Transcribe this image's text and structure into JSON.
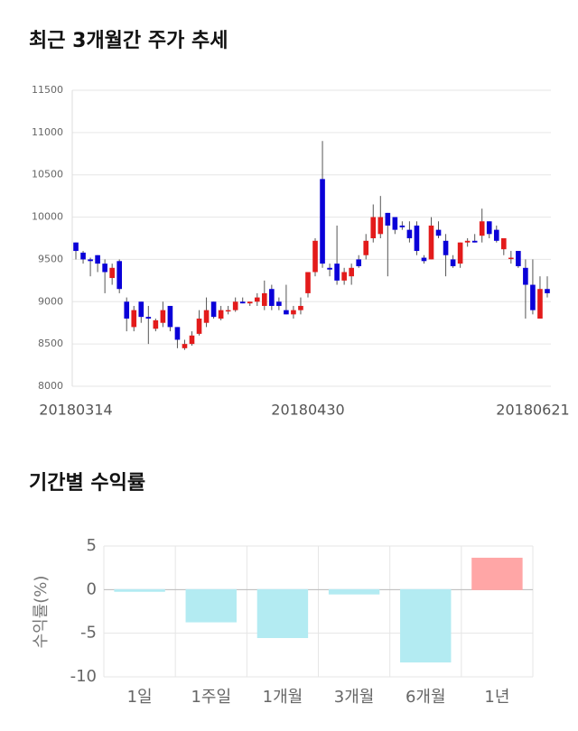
{
  "chart_data": [
    {
      "type": "candlestick",
      "title": "최근 3개월간 주가 추세",
      "categories": [
        "20180314",
        null,
        null,
        null,
        null,
        null,
        null,
        null,
        null,
        null,
        null,
        null,
        null,
        null,
        null,
        null,
        null,
        null,
        null,
        null,
        null,
        null,
        null,
        null,
        null,
        null,
        null,
        null,
        null,
        null,
        null,
        null,
        "20180430",
        null,
        null,
        null,
        null,
        null,
        null,
        null,
        null,
        null,
        null,
        null,
        null,
        null,
        null,
        null,
        null,
        null,
        null,
        null,
        null,
        null,
        null,
        null,
        null,
        null,
        null,
        null,
        null,
        null,
        null,
        null,
        null,
        "20180621"
      ],
      "open": [
        9700,
        9580,
        9500,
        9550,
        9450,
        9280,
        9480,
        9000,
        8700,
        9000,
        8820,
        8680,
        8750,
        8950,
        8700,
        8450,
        8500,
        8620,
        8750,
        9000,
        8800,
        8900,
        8900,
        9000,
        8980,
        9000,
        8950,
        9150,
        9000,
        8900,
        8850,
        8900,
        9100,
        9350,
        10450,
        9400,
        9450,
        9250,
        9300,
        9500,
        9550,
        9750,
        9800,
        10050,
        10000,
        9900,
        9850,
        9900,
        9520,
        9500,
        9850,
        9720,
        9500,
        9450,
        9700,
        9720,
        9780,
        9950,
        9850,
        9620,
        9520,
        9600,
        9400,
        9200,
        8800,
        9150
      ],
      "high": [
        9700,
        9600,
        9520,
        9550,
        9500,
        9450,
        9500,
        9050,
        8950,
        9000,
        8950,
        8800,
        9000,
        8950,
        8700,
        8550,
        8650,
        8900,
        9050,
        9000,
        8950,
        8950,
        9050,
        9050,
        9000,
        9100,
        9250,
        9200,
        9050,
        9200,
        8950,
        9050,
        9350,
        9750,
        10900,
        9450,
        9900,
        9400,
        9450,
        9550,
        9800,
        10150,
        10250,
        10050,
        10000,
        9950,
        9950,
        9950,
        9550,
        10000,
        9950,
        9800,
        9550,
        9700,
        9750,
        9800,
        10100,
        9950,
        9900,
        9750,
        9600,
        9600,
        9500,
        9500,
        9300,
        9300
      ],
      "low": [
        9500,
        9450,
        9300,
        9350,
        9100,
        9200,
        9100,
        8650,
        8650,
        8750,
        8500,
        8650,
        8700,
        8650,
        8450,
        8430,
        8480,
        8600,
        8700,
        8800,
        8780,
        8850,
        8880,
        8980,
        8950,
        8950,
        8900,
        8900,
        8900,
        8850,
        8800,
        8850,
        9050,
        9300,
        9400,
        9300,
        9200,
        9200,
        9200,
        9400,
        9500,
        9700,
        9750,
        9300,
        9800,
        9850,
        9700,
        9550,
        9450,
        9500,
        9750,
        9300,
        9400,
        9400,
        9650,
        9700,
        9700,
        9750,
        9700,
        9550,
        9450,
        9400,
        8800,
        8850,
        8800,
        9050
      ],
      "close": [
        9600,
        9500,
        9480,
        9450,
        9350,
        9400,
        9150,
        8800,
        8900,
        8820,
        8800,
        8780,
        8900,
        8700,
        8550,
        8500,
        8600,
        8800,
        8900,
        8820,
        8900,
        8900,
        9000,
        8980,
        9000,
        9050,
        9100,
        8950,
        8950,
        8850,
        8900,
        8950,
        9350,
        9720,
        9450,
        9380,
        9250,
        9350,
        9400,
        9420,
        9720,
        10000,
        10000,
        9900,
        9850,
        9880,
        9750,
        9600,
        9480,
        9900,
        9780,
        9550,
        9420,
        9700,
        9720,
        9700,
        9950,
        9800,
        9720,
        9750,
        9520,
        9420,
        9200,
        8900,
        9150,
        9100
      ],
      "up_color": "#e31b1b",
      "down_color": "#0a00d8",
      "ylim": [
        8000,
        11500
      ],
      "yticks": [
        8000,
        8500,
        9000,
        9500,
        10000,
        10500,
        11000,
        11500
      ],
      "grid": true
    },
    {
      "type": "bar",
      "title": "기간별 수익률",
      "y_label": "수익률(%)",
      "categories": [
        "1일",
        "1주일",
        "1개월",
        "3개월",
        "6개월",
        "1년"
      ],
      "values": [
        -0.2,
        -3.7,
        -5.5,
        -0.5,
        -8.3,
        3.6
      ],
      "colors": [
        "#b3ebf2",
        "#b3ebf2",
        "#b3ebf2",
        "#b3ebf2",
        "#b3ebf2",
        "#ffa6a6"
      ],
      "ylim": [
        -10,
        5
      ],
      "yticks": [
        -10,
        -5,
        0,
        5
      ],
      "grid": true
    }
  ]
}
